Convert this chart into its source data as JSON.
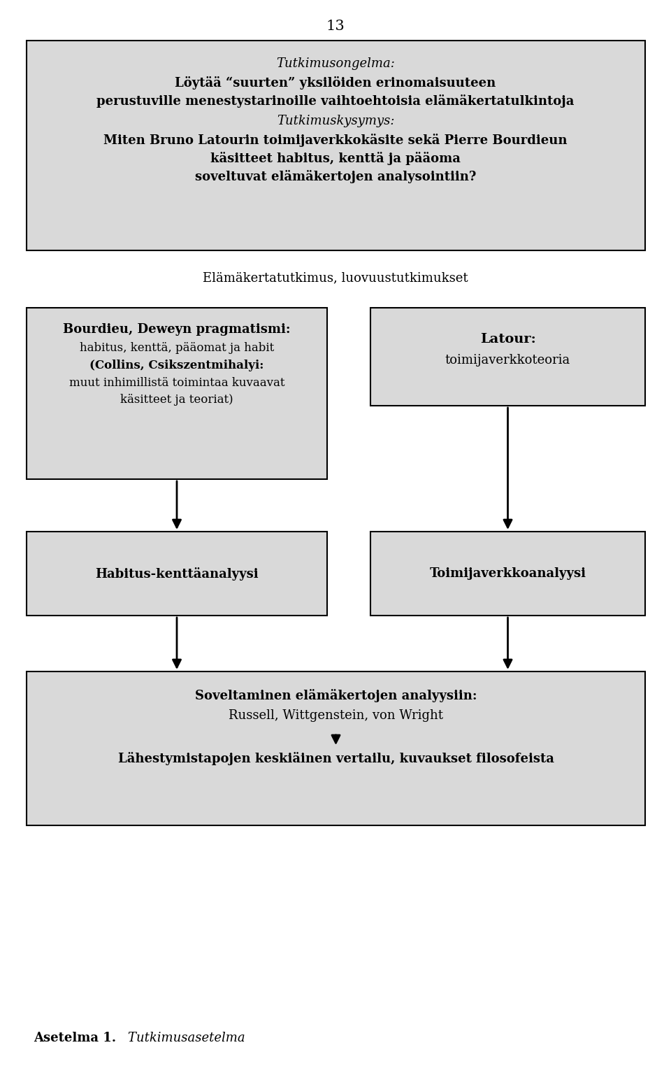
{
  "page_number": "13",
  "background_color": "#ffffff",
  "box_fill_color": "#d9d9d9",
  "box_edge_color": "#000000",
  "top_box": {
    "text_italic": "Tutkimusongelma:",
    "text_bold_line1": "Löytää “suurten” yksilöiden erinomaisuuteen",
    "text_bold_line2": "perustuville menestystarinoille vaihtoehtoisia elämäkertatulkintoja",
    "text_italic2": "Tutkimuskysymys:",
    "text_bold_line3": "Miten Bruno Latourin toimijaverkkokäsite sekä Pierre Bourdieun",
    "text_bold_line4": "käsitteet habitus, kenttä ja pääoma",
    "text_bold_line5": "soveltuvat elämäkertojen analysointiin?"
  },
  "mid_label": "Elämäkertatutkimus, luovuustutkimukset",
  "left_box": {
    "bold_line1": "Bourdieu, Deweyn pragmatismi:",
    "normal_line1": "habitus, kenttä, pääomat ja habit",
    "bold_line2": "(Collins, Csikszentmihalyi:",
    "normal_line2": "muut inhimillistä toimintaa kuvaavat",
    "normal_line3": "käsitteet ja teoriat)"
  },
  "right_box": {
    "bold_line": "Latour:",
    "normal_line": "toimijaverkkoteoria"
  },
  "left_box2": {
    "bold_line": "Habitus-kenttäanalyysi"
  },
  "right_box2": {
    "bold_line": "Toimijaverkkoanalyysi"
  },
  "bottom_box": {
    "bold_line": "Soveltaminen elämäkertojen analyysiin:",
    "normal_line": "Russell, Wittgenstein, von Wright",
    "bold_line2": "Lähestymistapojen keskiäinen vertailu, kuvaukset filosofeista"
  },
  "caption_bold": "Asetelma 1.",
  "caption_italic": "    Tutkimusasetelma"
}
